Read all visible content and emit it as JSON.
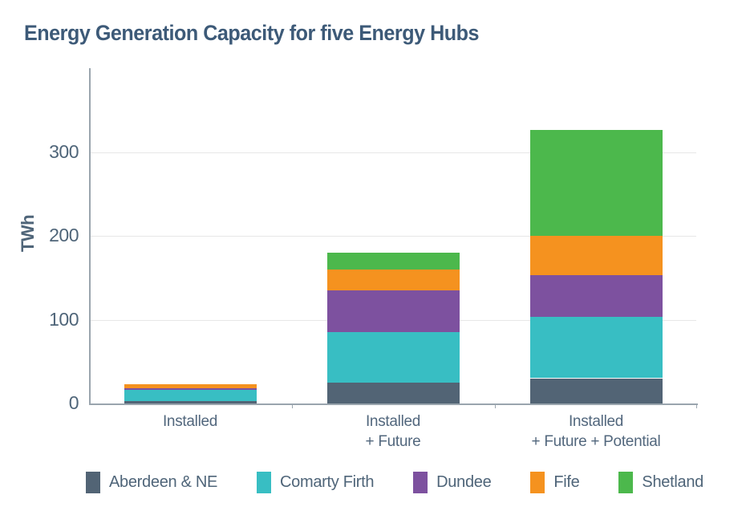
{
  "title": "Energy Generation Capacity for five Energy Hubs",
  "colors": {
    "title_text": "#3d5a78",
    "axis_text": "#4f6579",
    "grid_line": "#e7e7e7",
    "axis_line": "#9aa5ae",
    "background": "#ffffff"
  },
  "chart_data": {
    "type": "bar",
    "stacked": true,
    "title": "Energy Generation Capacity for five Energy Hubs",
    "xlabel": "",
    "ylabel": "TWh",
    "ylim": [
      0,
      400
    ],
    "yticks": [
      0,
      100,
      200,
      300
    ],
    "grid": "horizontal",
    "legend_position": "bottom",
    "categories": [
      "Installed",
      "Installed + Future",
      "Installed + Future + Potential"
    ],
    "category_label_lines": [
      [
        "Installed"
      ],
      [
        "Installed",
        "+ Future"
      ],
      [
        "Installed",
        "+ Future + Potential"
      ]
    ],
    "series": [
      {
        "name": "Aberdeen & NE",
        "color": "#526475",
        "values": [
          3,
          25,
          30
        ]
      },
      {
        "name": "Comarty Firth",
        "color": "#38bec3",
        "values": [
          13,
          60,
          73
        ]
      },
      {
        "name": "Dundee",
        "color": "#7d519f",
        "values": [
          2,
          50,
          50
        ]
      },
      {
        "name": "Fife",
        "color": "#f5921f",
        "values": [
          5,
          25,
          47
        ]
      },
      {
        "name": "Shetland",
        "color": "#4cb84c",
        "values": [
          0,
          20,
          126
        ]
      }
    ],
    "stack_totals": [
      23,
      180,
      326
    ]
  }
}
